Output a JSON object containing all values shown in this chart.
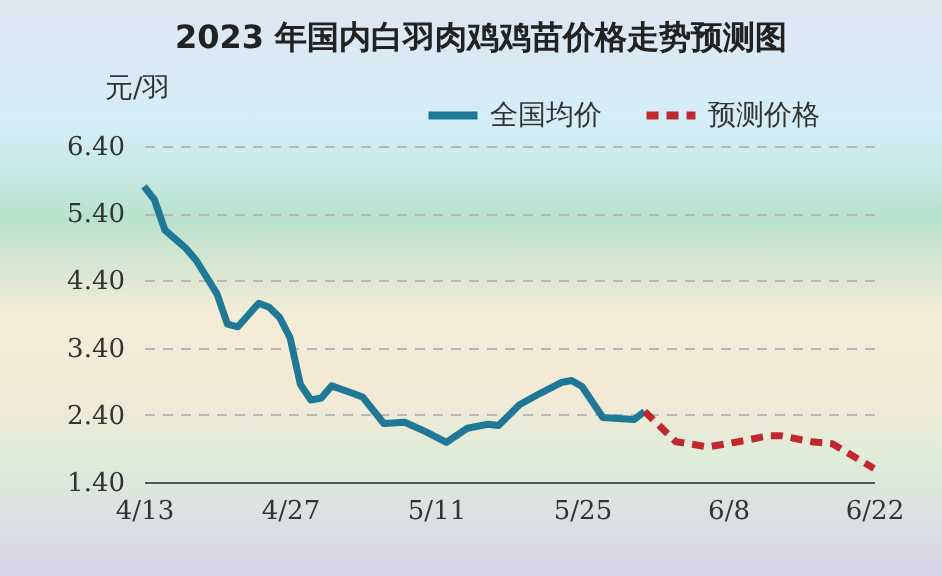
{
  "chart_data": {
    "type": "line",
    "title": "2023 年国内白羽肉鸡鸡苗价格走势预测图",
    "ylabel": "元/羽",
    "series": [
      {
        "name": "全国均价",
        "color": "#1f7896",
        "line_style": "solid",
        "x": [
          "2023-04-13",
          "2023-04-14",
          "2023-04-15",
          "2023-04-17",
          "2023-04-18",
          "2023-04-20",
          "2023-04-21",
          "2023-04-22",
          "2023-04-24",
          "2023-04-25",
          "2023-04-26",
          "2023-04-27",
          "2023-04-28",
          "2023-04-29",
          "2023-04-30",
          "2023-05-01",
          "2023-05-03",
          "2023-05-04",
          "2023-05-06",
          "2023-05-08",
          "2023-05-10",
          "2023-05-12",
          "2023-05-14",
          "2023-05-16",
          "2023-05-17",
          "2023-05-19",
          "2023-05-21",
          "2023-05-23",
          "2023-05-24",
          "2023-05-25",
          "2023-05-27",
          "2023-05-30",
          "2023-05-31"
        ],
        "values": [
          5.8,
          5.6,
          5.15,
          4.88,
          4.7,
          4.2,
          3.75,
          3.71,
          4.06,
          4.0,
          3.85,
          3.55,
          2.85,
          2.62,
          2.65,
          2.83,
          2.72,
          2.66,
          2.27,
          2.29,
          2.15,
          1.99,
          2.2,
          2.26,
          2.24,
          2.55,
          2.72,
          2.88,
          2.91,
          2.82,
          2.36,
          2.33,
          2.45
        ]
      },
      {
        "name": "预测价格",
        "color": "#c0282d",
        "line_style": "dashed",
        "x": [
          "2023-05-31",
          "2023-06-03",
          "2023-06-05",
          "2023-06-06",
          "2023-06-09",
          "2023-06-12",
          "2023-06-13",
          "2023-06-16",
          "2023-06-18",
          "2023-06-22"
        ],
        "values": [
          2.45,
          2.0,
          1.95,
          1.92,
          2.0,
          2.09,
          2.09,
          2.0,
          1.97,
          1.6
        ]
      }
    ],
    "xlim": [
      "2023-04-13",
      "2023-06-22"
    ],
    "xticks": [
      {
        "value": "2023-04-13",
        "label": "4/13"
      },
      {
        "value": "2023-04-27",
        "label": "4/27"
      },
      {
        "value": "2023-05-11",
        "label": "5/11"
      },
      {
        "value": "2023-05-25",
        "label": "5/25"
      },
      {
        "value": "2023-06-08",
        "label": "6/8"
      },
      {
        "value": "2023-06-22",
        "label": "6/22"
      }
    ],
    "ylim": [
      1.4,
      6.4
    ],
    "yticks": [
      {
        "value": 1.4,
        "label": "1.40"
      },
      {
        "value": 2.4,
        "label": "2.40"
      },
      {
        "value": 3.4,
        "label": "3.40"
      },
      {
        "value": 4.4,
        "label": "4.40"
      },
      {
        "value": 5.4,
        "label": "5.40"
      },
      {
        "value": 6.4,
        "label": "6.40"
      }
    ],
    "grid": "y",
    "legend": "top right",
    "marker": "none"
  }
}
